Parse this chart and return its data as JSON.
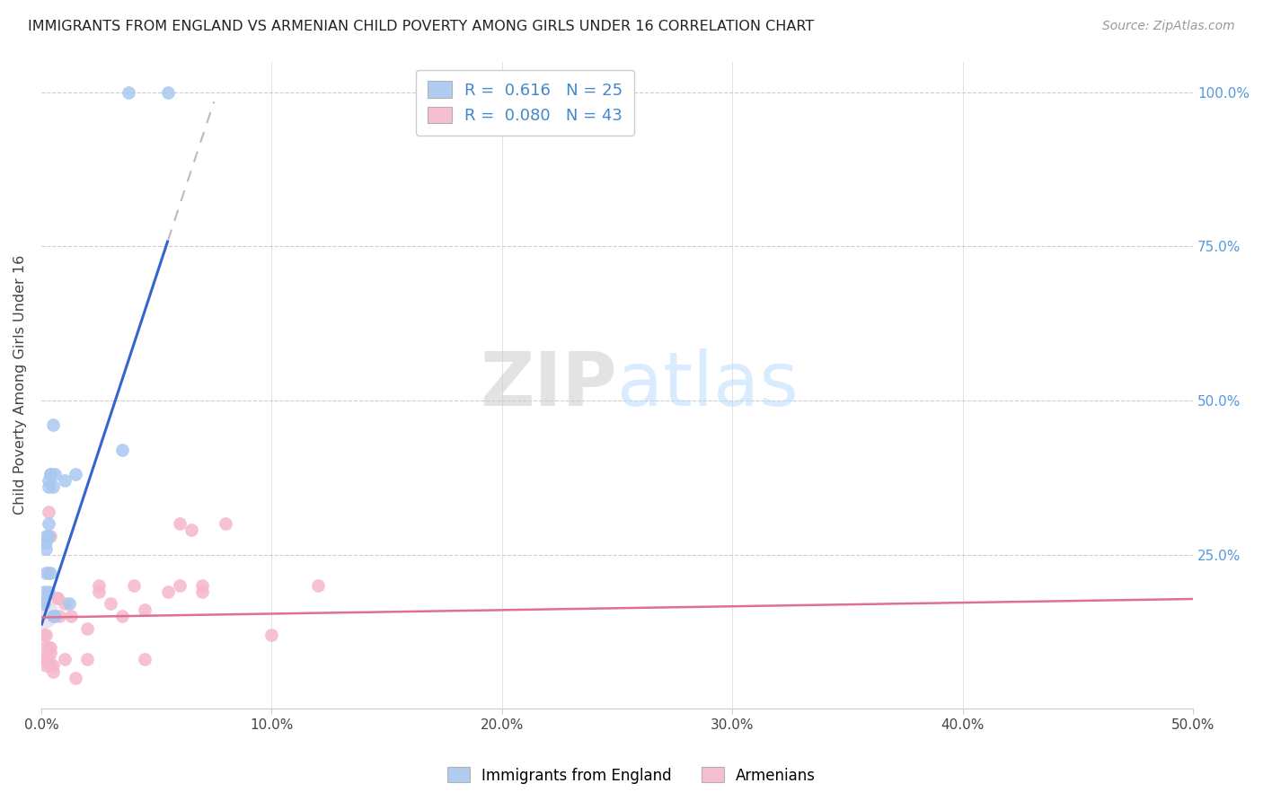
{
  "title": "IMMIGRANTS FROM ENGLAND VS ARMENIAN CHILD POVERTY AMONG GIRLS UNDER 16 CORRELATION CHART",
  "source": "Source: ZipAtlas.com",
  "ylabel": "Child Poverty Among Girls Under 16",
  "watermark": "ZIPatlas",
  "legend1_r": "0.616",
  "legend1_n": "25",
  "legend2_r": "0.080",
  "legend2_n": "43",
  "legend1_label": "Immigrants from England",
  "legend2_label": "Armenians",
  "blue_color": "#a8c8f0",
  "pink_color": "#f5b8cb",
  "blue_line_color": "#3366cc",
  "pink_line_color": "#e07090",
  "dashed_line_color": "#bbbbbb",
  "blue_scatter": [
    [
      0.001,
      0.17
    ],
    [
      0.001,
      0.19
    ],
    [
      0.002,
      0.27
    ],
    [
      0.002,
      0.26
    ],
    [
      0.002,
      0.28
    ],
    [
      0.002,
      0.22
    ],
    [
      0.003,
      0.37
    ],
    [
      0.003,
      0.36
    ],
    [
      0.003,
      0.3
    ],
    [
      0.003,
      0.28
    ],
    [
      0.003,
      0.19
    ],
    [
      0.004,
      0.38
    ],
    [
      0.004,
      0.38
    ],
    [
      0.004,
      0.22
    ],
    [
      0.005,
      0.46
    ],
    [
      0.005,
      0.36
    ],
    [
      0.005,
      0.15
    ],
    [
      0.006,
      0.38
    ],
    [
      0.006,
      0.15
    ],
    [
      0.01,
      0.37
    ],
    [
      0.012,
      0.17
    ],
    [
      0.015,
      0.38
    ],
    [
      0.035,
      0.42
    ],
    [
      0.038,
      1.0
    ],
    [
      0.055,
      1.0
    ]
  ],
  "pink_scatter": [
    [
      0.001,
      0.17
    ],
    [
      0.001,
      0.12
    ],
    [
      0.001,
      0.1
    ],
    [
      0.001,
      0.08
    ],
    [
      0.002,
      0.12
    ],
    [
      0.002,
      0.08
    ],
    [
      0.002,
      0.07
    ],
    [
      0.003,
      0.32
    ],
    [
      0.003,
      0.28
    ],
    [
      0.003,
      0.22
    ],
    [
      0.003,
      0.1
    ],
    [
      0.003,
      0.08
    ],
    [
      0.004,
      0.28
    ],
    [
      0.004,
      0.1
    ],
    [
      0.004,
      0.09
    ],
    [
      0.004,
      0.07
    ],
    [
      0.005,
      0.07
    ],
    [
      0.005,
      0.06
    ],
    [
      0.007,
      0.18
    ],
    [
      0.007,
      0.18
    ],
    [
      0.008,
      0.15
    ],
    [
      0.01,
      0.17
    ],
    [
      0.01,
      0.08
    ],
    [
      0.013,
      0.15
    ],
    [
      0.015,
      0.05
    ],
    [
      0.02,
      0.13
    ],
    [
      0.02,
      0.08
    ],
    [
      0.025,
      0.2
    ],
    [
      0.025,
      0.19
    ],
    [
      0.03,
      0.17
    ],
    [
      0.035,
      0.15
    ],
    [
      0.04,
      0.2
    ],
    [
      0.045,
      0.16
    ],
    [
      0.045,
      0.08
    ],
    [
      0.055,
      0.19
    ],
    [
      0.06,
      0.2
    ],
    [
      0.06,
      0.3
    ],
    [
      0.065,
      0.29
    ],
    [
      0.07,
      0.2
    ],
    [
      0.07,
      0.19
    ],
    [
      0.08,
      0.3
    ],
    [
      0.1,
      0.12
    ],
    [
      0.12,
      0.2
    ]
  ],
  "blue_trendline_solid": [
    [
      0.0,
      0.135
    ],
    [
      0.055,
      0.76
    ]
  ],
  "blue_trendline_dash": [
    [
      0.055,
      0.76
    ],
    [
      0.075,
      0.985
    ]
  ],
  "pink_trendline": [
    [
      0.0,
      0.148
    ],
    [
      0.5,
      0.178
    ]
  ],
  "xlim": [
    0.0,
    0.5
  ],
  "ylim": [
    0.0,
    1.05
  ],
  "yticks": [
    0.25,
    0.5,
    0.75,
    1.0
  ],
  "ytick_labels": [
    "25.0%",
    "50.0%",
    "75.0%",
    "100.0%"
  ],
  "xticks": [
    0.0,
    0.1,
    0.2,
    0.3,
    0.4,
    0.5
  ],
  "xtick_labels": [
    "0.0%",
    "10.0%",
    "20.0%",
    "30.0%",
    "40.0%",
    "50.0%"
  ],
  "scatter_size": 100
}
